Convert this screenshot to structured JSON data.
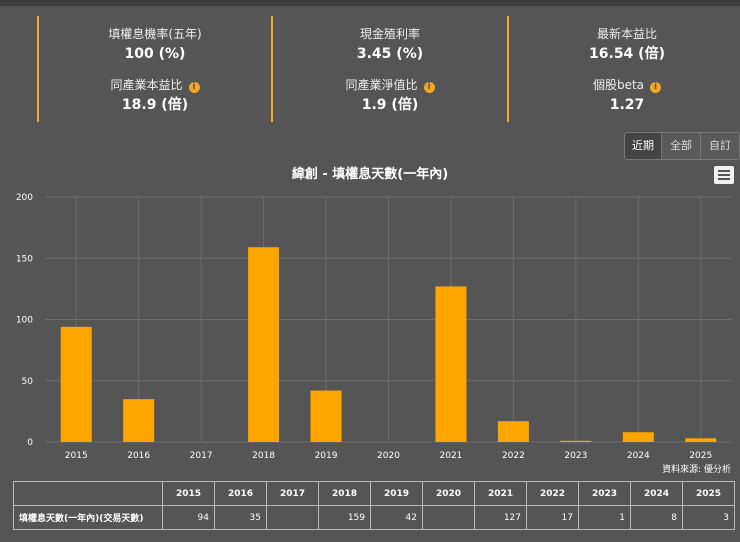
{
  "stats": [
    {
      "label": "填權息機率(五年)",
      "value": "100 (%)",
      "info": false
    },
    {
      "label": "現金殖利率",
      "value": "3.45 (%)",
      "info": false
    },
    {
      "label": "最新本益比",
      "value": "16.54 (倍)",
      "info": false
    },
    {
      "label": "同產業本益比",
      "value": "18.9 (倍)",
      "info": true
    },
    {
      "label": "同產業淨值比",
      "value": "1.9 (倍)",
      "info": true
    },
    {
      "label": "個股beta",
      "value": "1.27",
      "info": true
    }
  ],
  "info_icon": "i",
  "range_buttons": [
    "近期",
    "全部",
    "自訂"
  ],
  "chart_data": {
    "type": "bar",
    "title": "緯創 - 填權息天數(一年內)",
    "categories": [
      "2015",
      "2016",
      "2017",
      "2018",
      "2019",
      "2020",
      "2021",
      "2022",
      "2023",
      "2024",
      "2025"
    ],
    "values": [
      94,
      35,
      0,
      159,
      42,
      0,
      127,
      17,
      1,
      8,
      3
    ],
    "ylim": [
      0,
      200
    ],
    "yticks": [
      0,
      50,
      100,
      150,
      200
    ],
    "grid": true,
    "bar_color": "#FFA500",
    "source": "資料來源: 優分析"
  },
  "table": {
    "row_label": "填權息天數(一年內)(交易天數)",
    "years": [
      "2015",
      "2016",
      "2017",
      "2018",
      "2019",
      "2020",
      "2021",
      "2022",
      "2023",
      "2024",
      "2025"
    ],
    "values": [
      "94",
      "35",
      "",
      "159",
      "42",
      "",
      "127",
      "17",
      "1",
      "8",
      "3"
    ]
  },
  "colors": {
    "accent": "#f5a623",
    "background": "#555555",
    "bar": "#FFA500"
  }
}
